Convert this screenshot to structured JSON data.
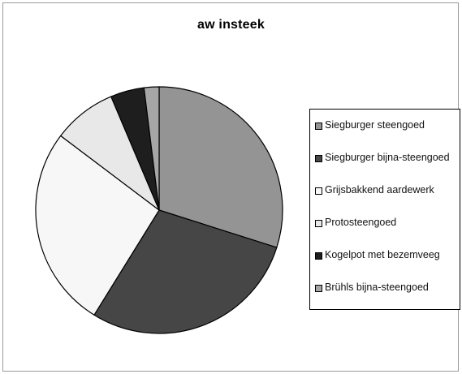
{
  "chart_data": {
    "type": "pie",
    "title": "aw  insteek",
    "legend_position": "right",
    "categories": [
      "Siegburger steengoed",
      "Siegburger bijna-steengoed",
      "Grijsbakkend aardewerk",
      "Protosteengoed",
      "Kogelpot met bezemveeg",
      "Brühls bijna-steengoed"
    ],
    "values": [
      30.5,
      29.5,
      27.0,
      8.5,
      4.5,
      2.0
    ],
    "colors": [
      "#949494",
      "#464646",
      "#f7f7f7",
      "#e8e8e8",
      "#1e1e1e",
      "#a6a6a6"
    ]
  }
}
